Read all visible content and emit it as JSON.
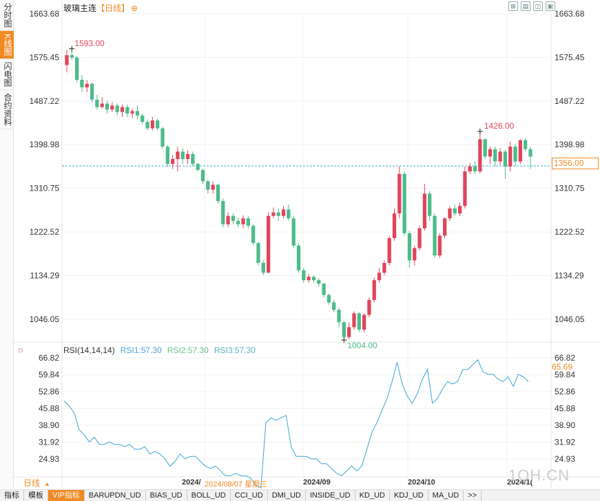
{
  "title": {
    "name": "玻璃主连",
    "period": "【日线】",
    "add_icon": "⊕"
  },
  "left_tabs": [
    "分时图",
    "K线图",
    "闪电图",
    "合约资料"
  ],
  "active_tab": 1,
  "tool_icons": [
    "fullscreen-icon",
    "settings-icon",
    "restore-icon",
    "maximize-icon"
  ],
  "price_axis": {
    "ticks": [
      "1663.68",
      "1575.45",
      "1487.22",
      "1398.98",
      "1310.75",
      "1222.52",
      "1134.29",
      "1046.05"
    ],
    "current": "1356.00"
  },
  "annotations": {
    "high": "1593.00",
    "low": "1004.00",
    "recent_high": "1426.00"
  },
  "indicator": {
    "name": "RSI(14,14,14)",
    "rsi1": "RSI1:57.30",
    "rsi2": "RSI2:57.30",
    "rsi3": "RSI3:57.30",
    "current": "65.69",
    "ticks": [
      "66.82",
      "59.84",
      "52.86",
      "45.88",
      "38.90",
      "31.92",
      "24.93"
    ]
  },
  "period_label": "日线",
  "x_labels": [
    "2024/",
    "2024/08/07 星期三",
    "2024/09",
    "2024/10",
    "2024/1("
  ],
  "brand": "1QH.CN",
  "bottom_tabs": [
    "指标",
    "模板",
    "VIP指标",
    "BARUPDN_UD",
    "BIAS_UD",
    "BOLL_UD",
    "CCI_UD",
    "DMI_UD",
    "INSIDE_UD",
    "KD_UD",
    "KDJ_UD",
    "MA_UD",
    ">>"
  ],
  "colors": {
    "up": "#e0455b",
    "down": "#4cbb8a",
    "accent": "#f08a24",
    "rsi_line": "#3aa5d8"
  },
  "chart_data": {
    "type": "candlestick",
    "ylim": [
      1000,
      1663.68
    ],
    "candles": [
      [
        1560,
        1580,
        1590,
        1545
      ],
      [
        1580,
        1575,
        1593,
        1570
      ],
      [
        1575,
        1530,
        1578,
        1525
      ],
      [
        1530,
        1515,
        1540,
        1505
      ],
      [
        1515,
        1522,
        1530,
        1505
      ],
      [
        1522,
        1490,
        1525,
        1485
      ],
      [
        1490,
        1475,
        1500,
        1470
      ],
      [
        1475,
        1482,
        1495,
        1472
      ],
      [
        1482,
        1470,
        1488,
        1462
      ],
      [
        1470,
        1478,
        1485,
        1465
      ],
      [
        1478,
        1465,
        1482,
        1458
      ],
      [
        1465,
        1475,
        1480,
        1455
      ],
      [
        1475,
        1462,
        1480,
        1455
      ],
      [
        1462,
        1467,
        1472,
        1452
      ],
      [
        1467,
        1458,
        1478,
        1450
      ],
      [
        1458,
        1445,
        1462,
        1440
      ],
      [
        1445,
        1432,
        1450,
        1428
      ],
      [
        1432,
        1448,
        1455,
        1428
      ],
      [
        1448,
        1432,
        1452,
        1428
      ],
      [
        1432,
        1395,
        1435,
        1390
      ],
      [
        1395,
        1360,
        1398,
        1355
      ],
      [
        1360,
        1370,
        1378,
        1350
      ],
      [
        1370,
        1385,
        1395,
        1345
      ],
      [
        1385,
        1370,
        1392,
        1360
      ],
      [
        1370,
        1380,
        1388,
        1360
      ],
      [
        1380,
        1360,
        1385,
        1355
      ],
      [
        1360,
        1348,
        1362,
        1345
      ],
      [
        1348,
        1325,
        1350,
        1320
      ],
      [
        1325,
        1308,
        1328,
        1300
      ],
      [
        1308,
        1318,
        1325,
        1300
      ],
      [
        1318,
        1285,
        1320,
        1280
      ],
      [
        1285,
        1238,
        1290,
        1232
      ],
      [
        1238,
        1255,
        1262,
        1232
      ],
      [
        1255,
        1245,
        1260,
        1238
      ],
      [
        1245,
        1238,
        1252,
        1232
      ],
      [
        1238,
        1250,
        1256,
        1230
      ],
      [
        1250,
        1235,
        1255,
        1230
      ],
      [
        1235,
        1200,
        1238,
        1195
      ],
      [
        1200,
        1160,
        1202,
        1155
      ],
      [
        1160,
        1140,
        1165,
        1135
      ],
      [
        1140,
        1255,
        1262,
        1245
      ],
      [
        1255,
        1262,
        1272,
        1250
      ],
      [
        1262,
        1255,
        1270,
        1245
      ],
      [
        1255,
        1268,
        1275,
        1250
      ],
      [
        1268,
        1250,
        1278,
        1245
      ],
      [
        1250,
        1195,
        1255,
        1190
      ],
      [
        1195,
        1145,
        1200,
        1140
      ],
      [
        1145,
        1125,
        1150,
        1120
      ],
      [
        1125,
        1132,
        1138,
        1120
      ],
      [
        1132,
        1125,
        1135,
        1120
      ],
      [
        1125,
        1118,
        1130,
        1112
      ],
      [
        1118,
        1095,
        1120,
        1090
      ],
      [
        1095,
        1080,
        1098,
        1075
      ],
      [
        1080,
        1065,
        1085,
        1060
      ],
      [
        1065,
        1040,
        1070,
        1030
      ],
      [
        1040,
        1010,
        1042,
        1004
      ],
      [
        1010,
        1030,
        1040,
        1005
      ],
      [
        1030,
        1058,
        1062,
        1025
      ],
      [
        1058,
        1025,
        1060,
        1020
      ],
      [
        1025,
        1055,
        1058,
        1020
      ],
      [
        1055,
        1085,
        1090,
        1050
      ],
      [
        1085,
        1125,
        1130,
        1080
      ],
      [
        1125,
        1140,
        1150,
        1120
      ],
      [
        1140,
        1160,
        1165,
        1135
      ],
      [
        1160,
        1210,
        1215,
        1155
      ],
      [
        1210,
        1260,
        1270,
        1205
      ],
      [
        1260,
        1340,
        1355,
        1250
      ],
      [
        1340,
        1220,
        1345,
        1215
      ],
      [
        1220,
        1165,
        1225,
        1150
      ],
      [
        1165,
        1190,
        1195,
        1155
      ],
      [
        1190,
        1230,
        1235,
        1185
      ],
      [
        1230,
        1300,
        1320,
        1225
      ],
      [
        1300,
        1255,
        1305,
        1245
      ],
      [
        1255,
        1175,
        1260,
        1170
      ],
      [
        1175,
        1215,
        1220,
        1170
      ],
      [
        1215,
        1250,
        1252,
        1210
      ],
      [
        1250,
        1270,
        1275,
        1245
      ],
      [
        1270,
        1260,
        1278,
        1255
      ],
      [
        1260,
        1275,
        1282,
        1255
      ],
      [
        1275,
        1345,
        1355,
        1270
      ],
      [
        1345,
        1355,
        1362,
        1340
      ],
      [
        1355,
        1345,
        1365,
        1340
      ],
      [
        1345,
        1410,
        1426,
        1340
      ],
      [
        1410,
        1375,
        1412,
        1370
      ],
      [
        1375,
        1390,
        1395,
        1360
      ],
      [
        1390,
        1365,
        1395,
        1355
      ],
      [
        1365,
        1385,
        1392,
        1358
      ],
      [
        1385,
        1355,
        1390,
        1330
      ],
      [
        1355,
        1395,
        1405,
        1345
      ],
      [
        1395,
        1365,
        1400,
        1355
      ],
      [
        1365,
        1408,
        1410,
        1360
      ],
      [
        1408,
        1390,
        1412,
        1385
      ],
      [
        1390,
        1375,
        1395,
        1350
      ]
    ],
    "rsi": [
      49,
      47,
      44,
      37,
      35,
      32,
      34,
      31,
      31,
      32,
      31,
      31,
      30,
      31,
      29,
      29,
      30,
      27,
      28,
      27,
      25,
      22,
      24,
      27,
      25,
      26,
      26,
      24,
      22,
      21,
      22,
      20,
      18,
      18,
      19,
      18,
      18,
      17,
      14,
      13,
      40,
      42,
      41,
      42,
      43,
      30,
      26,
      26,
      26,
      25,
      25,
      23,
      23,
      21,
      19,
      18,
      20,
      22,
      20,
      22,
      29,
      36,
      40,
      45,
      50,
      57,
      65,
      56,
      51,
      48,
      52,
      58,
      62,
      48,
      50,
      54,
      57,
      56,
      57,
      62,
      62,
      64,
      66,
      61,
      60,
      60,
      58,
      57,
      59,
      55,
      60,
      59,
      57
    ]
  }
}
